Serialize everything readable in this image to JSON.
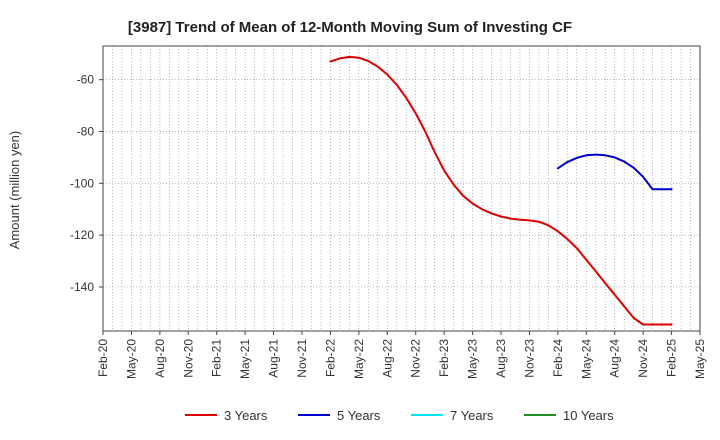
{
  "chart_data": {
    "type": "line",
    "title": "[3987]  Trend of Mean of 12-Month Moving Sum of Investing CF",
    "xlabel": "",
    "ylabel": "Amount (million yen)",
    "ylim": [
      -157,
      -47
    ],
    "yticks": [
      -60,
      -80,
      -100,
      -120,
      -140
    ],
    "grid": true,
    "categories": [
      "Feb-20",
      "May-20",
      "Aug-20",
      "Nov-20",
      "Feb-21",
      "May-21",
      "Aug-21",
      "Nov-21",
      "Feb-22",
      "May-22",
      "Aug-22",
      "Nov-22",
      "Feb-23",
      "May-23",
      "Aug-23",
      "Nov-23",
      "Feb-24",
      "May-24",
      "Aug-24",
      "Nov-24",
      "Feb-25",
      "May-25"
    ],
    "legend_position": "bottom",
    "series": [
      {
        "name": "3 Years",
        "color": "#dd0000",
        "x": [
          24,
          25,
          26,
          27,
          28,
          29,
          30,
          31,
          32,
          33,
          34,
          35,
          36,
          37,
          38,
          39,
          40,
          41,
          42,
          43,
          44,
          45,
          46,
          47,
          48,
          49,
          50,
          51,
          52,
          53,
          54,
          55,
          56,
          57,
          58,
          59,
          60
        ],
        "values": [
          -53,
          -51.8,
          -51.2,
          -51.5,
          -52.8,
          -55,
          -58,
          -62,
          -67,
          -73,
          -80,
          -88,
          -95,
          -100.5,
          -104.8,
          -107.8,
          -110,
          -111.6,
          -112.8,
          -113.6,
          -114.1,
          -114.3,
          -114.8,
          -116.2,
          -118.5,
          -121.5,
          -125,
          -129.5,
          -134,
          -138.5,
          -143,
          -147.5,
          -152,
          -154.5,
          -154.5,
          -154.5,
          -154.5
        ]
      },
      {
        "name": "5 Years",
        "color": "#0000cc",
        "x": [
          48,
          49,
          50,
          51,
          52,
          53,
          54,
          55,
          56,
          57,
          58,
          59,
          60
        ],
        "values": [
          -94.2,
          -91.8,
          -90.2,
          -89.2,
          -88.9,
          -89.2,
          -90,
          -91.6,
          -94,
          -97.5,
          -102.3,
          -102.3,
          -102.3
        ]
      },
      {
        "name": "7 Years",
        "color": "#00e5ee",
        "x": [],
        "values": []
      },
      {
        "name": "10 Years",
        "color": "#228b22",
        "x": [],
        "values": []
      }
    ]
  }
}
